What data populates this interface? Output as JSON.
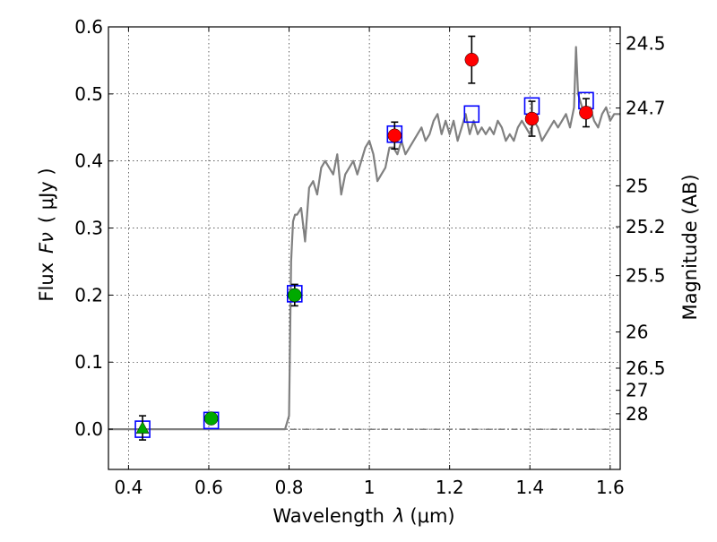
{
  "chart_data": {
    "type": "scatter",
    "xlabel_text": "Wavelength",
    "xlabel_symbol": "λ",
    "xlabel_unit": "(μm)",
    "ylabel_text": "Flux",
    "ylabel_symbol": "Fν",
    "ylabel_unit": "( μJy )",
    "ylabel_right": "Magnitude (AB)",
    "xlim": [
      0.35,
      1.625
    ],
    "ylim": [
      -0.06,
      0.6
    ],
    "grid": true,
    "x_ticks": [
      0.4,
      0.6,
      0.8,
      1.0,
      1.2,
      1.4,
      1.6
    ],
    "x_tick_labels": [
      "0.4",
      "0.6",
      "0.8",
      "1",
      "1.2",
      "1.4",
      "1.6"
    ],
    "y_ticks": [
      0.0,
      0.1,
      0.2,
      0.3,
      0.4,
      0.5,
      0.6
    ],
    "y_tick_labels": [
      "0.0",
      "0.1",
      "0.2",
      "0.3",
      "0.4",
      "0.5",
      "0.6"
    ],
    "mag_ticks": [
      {
        "label": "24.5",
        "flux": 0.575
      },
      {
        "label": "24.7",
        "flux": 0.479
      },
      {
        "label": "25",
        "flux": 0.363
      },
      {
        "label": "25.2",
        "flux": 0.302
      },
      {
        "label": "25.5",
        "flux": 0.229
      },
      {
        "label": "26",
        "flux": 0.145
      },
      {
        "label": "26.5",
        "flux": 0.091
      },
      {
        "label": "27",
        "flux": 0.058
      },
      {
        "label": "28",
        "flux": 0.023
      }
    ],
    "colors": {
      "model": "#808080",
      "green": "#00aa00",
      "red": "#ff0000",
      "box": "#0000ff",
      "errorbar": "#000000",
      "zero_line": "#000000"
    },
    "model_sed": [
      [
        0.35,
        0.0
      ],
      [
        0.79,
        0.0
      ],
      [
        0.8,
        0.02
      ],
      [
        0.805,
        0.25
      ],
      [
        0.81,
        0.31
      ],
      [
        0.815,
        0.32
      ],
      [
        0.82,
        0.32
      ],
      [
        0.83,
        0.33
      ],
      [
        0.84,
        0.28
      ],
      [
        0.85,
        0.36
      ],
      [
        0.86,
        0.37
      ],
      [
        0.87,
        0.35
      ],
      [
        0.88,
        0.39
      ],
      [
        0.89,
        0.4
      ],
      [
        0.9,
        0.39
      ],
      [
        0.91,
        0.38
      ],
      [
        0.92,
        0.41
      ],
      [
        0.93,
        0.35
      ],
      [
        0.94,
        0.38
      ],
      [
        0.95,
        0.39
      ],
      [
        0.96,
        0.4
      ],
      [
        0.97,
        0.38
      ],
      [
        0.98,
        0.4
      ],
      [
        0.99,
        0.42
      ],
      [
        1.0,
        0.43
      ],
      [
        1.01,
        0.41
      ],
      [
        1.02,
        0.37
      ],
      [
        1.03,
        0.38
      ],
      [
        1.04,
        0.39
      ],
      [
        1.05,
        0.42
      ],
      [
        1.06,
        0.42
      ],
      [
        1.07,
        0.41
      ],
      [
        1.08,
        0.43
      ],
      [
        1.09,
        0.41
      ],
      [
        1.1,
        0.42
      ],
      [
        1.11,
        0.43
      ],
      [
        1.12,
        0.44
      ],
      [
        1.13,
        0.45
      ],
      [
        1.14,
        0.43
      ],
      [
        1.15,
        0.44
      ],
      [
        1.16,
        0.46
      ],
      [
        1.17,
        0.47
      ],
      [
        1.18,
        0.44
      ],
      [
        1.19,
        0.46
      ],
      [
        1.2,
        0.44
      ],
      [
        1.21,
        0.46
      ],
      [
        1.22,
        0.43
      ],
      [
        1.23,
        0.45
      ],
      [
        1.24,
        0.47
      ],
      [
        1.25,
        0.44
      ],
      [
        1.26,
        0.46
      ],
      [
        1.27,
        0.44
      ],
      [
        1.28,
        0.45
      ],
      [
        1.29,
        0.44
      ],
      [
        1.3,
        0.45
      ],
      [
        1.31,
        0.44
      ],
      [
        1.32,
        0.46
      ],
      [
        1.33,
        0.45
      ],
      [
        1.34,
        0.43
      ],
      [
        1.35,
        0.44
      ],
      [
        1.36,
        0.43
      ],
      [
        1.37,
        0.45
      ],
      [
        1.38,
        0.46
      ],
      [
        1.39,
        0.45
      ],
      [
        1.4,
        0.44
      ],
      [
        1.41,
        0.46
      ],
      [
        1.42,
        0.45
      ],
      [
        1.43,
        0.43
      ],
      [
        1.44,
        0.44
      ],
      [
        1.45,
        0.45
      ],
      [
        1.46,
        0.46
      ],
      [
        1.47,
        0.45
      ],
      [
        1.48,
        0.46
      ],
      [
        1.49,
        0.47
      ],
      [
        1.5,
        0.45
      ],
      [
        1.51,
        0.48
      ],
      [
        1.515,
        0.57
      ],
      [
        1.52,
        0.5
      ],
      [
        1.53,
        0.48
      ],
      [
        1.54,
        0.47
      ],
      [
        1.55,
        0.48
      ],
      [
        1.56,
        0.46
      ],
      [
        1.57,
        0.45
      ],
      [
        1.58,
        0.47
      ],
      [
        1.59,
        0.48
      ],
      [
        1.6,
        0.46
      ],
      [
        1.61,
        0.47
      ],
      [
        1.625,
        0.47
      ]
    ],
    "model_points": [
      {
        "x": 0.435,
        "y": 0.0
      },
      {
        "x": 0.606,
        "y": 0.013
      },
      {
        "x": 0.814,
        "y": 0.202
      },
      {
        "x": 1.063,
        "y": 0.44
      },
      {
        "x": 1.255,
        "y": 0.47
      },
      {
        "x": 1.405,
        "y": 0.482
      },
      {
        "x": 1.54,
        "y": 0.49
      }
    ],
    "observed": [
      {
        "x": 0.435,
        "y": 0.002,
        "err": 0.018,
        "color": "green",
        "marker": "triangle"
      },
      {
        "x": 0.606,
        "y": 0.016,
        "err": 0.006,
        "color": "green",
        "marker": "circle"
      },
      {
        "x": 0.814,
        "y": 0.2,
        "err": 0.016,
        "color": "green",
        "marker": "circle"
      },
      {
        "x": 1.063,
        "y": 0.438,
        "err": 0.02,
        "color": "red",
        "marker": "circle"
      },
      {
        "x": 1.255,
        "y": 0.551,
        "err": 0.035,
        "color": "red",
        "marker": "circle"
      },
      {
        "x": 1.405,
        "y": 0.463,
        "err": 0.026,
        "color": "red",
        "marker": "circle"
      },
      {
        "x": 1.54,
        "y": 0.472,
        "err": 0.021,
        "color": "red",
        "marker": "circle"
      }
    ]
  }
}
